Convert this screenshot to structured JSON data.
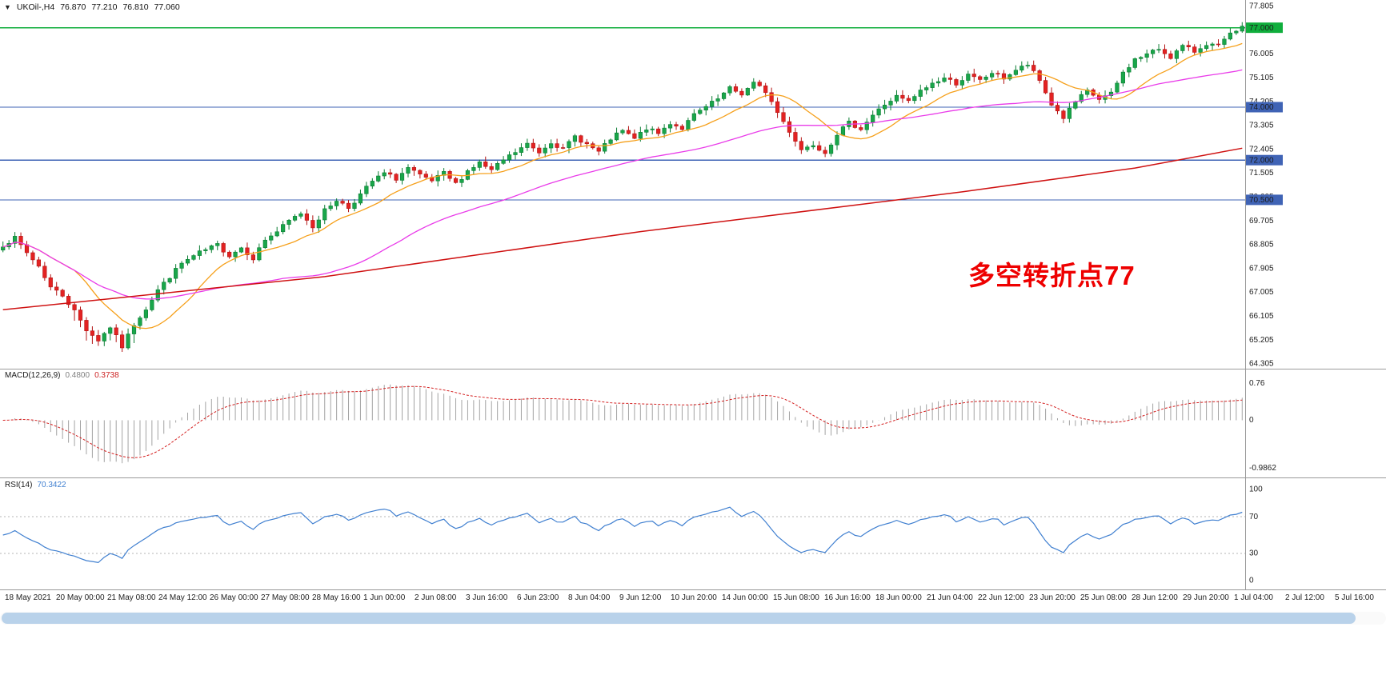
{
  "symbol_bar": {
    "dropdown_glyph": "▼",
    "symbol_period": "UKOil-,H4",
    "open": "76.870",
    "high": "77.210",
    "low": "76.810",
    "close": "77.060"
  },
  "annotation": {
    "text": "多空转折点77",
    "color": "#ee0000"
  },
  "macd_header": {
    "name_label": "MACD(12,26,9)",
    "macd_value": "0.4800",
    "signal_value": "0.3738"
  },
  "rsi_header": {
    "name_label": "RSI(14)",
    "value": "70.3422"
  },
  "x_axis": {
    "labels": [
      "18 May 2021",
      "20 May 00:00",
      "21 May 08:00",
      "24 May 12:00",
      "26 May 00:00",
      "27 May 08:00",
      "28 May 16:00",
      "1 Jun 00:00",
      "2 Jun 08:00",
      "3 Jun 16:00",
      "6 Jun 23:00",
      "8 Jun 04:00",
      "9 Jun 12:00",
      "10 Jun 20:00",
      "14 Jun 00:00",
      "15 Jun 08:00",
      "16 Jun 16:00",
      "18 Jun 00:00",
      "21 Jun 04:00",
      "22 Jun 12:00",
      "23 Jun 20:00",
      "25 Jun 08:00",
      "28 Jun 12:00",
      "29 Jun 20:00",
      "1 Jul 04:00",
      "2 Jul 12:00",
      "5 Jul 16:00"
    ]
  },
  "chart_data": {
    "type": "candlestick",
    "symbol": "UKOil-",
    "timeframe": "H4",
    "main": {
      "bars_total": 209,
      "y_axis": {
        "max": 77.805,
        "min": 64.305,
        "tick_step": 0.9,
        "tick_labels": [
          "77.805",
          "76.905",
          "76.005",
          "75.105",
          "74.205",
          "73.305",
          "72.405",
          "71.505",
          "70.605",
          "69.705",
          "68.805",
          "67.905",
          "67.005",
          "66.105",
          "65.205",
          "64.305"
        ]
      },
      "price_path_anchors": [
        [
          0,
          68.8
        ],
        [
          2,
          69.05
        ],
        [
          4,
          68.5
        ],
        [
          6,
          68.0
        ],
        [
          8,
          67.2
        ],
        [
          10,
          66.9
        ],
        [
          12,
          66.3
        ],
        [
          14,
          65.6
        ],
        [
          16,
          65.2
        ],
        [
          18,
          65.7
        ],
        [
          20,
          64.95
        ],
        [
          22,
          65.8
        ],
        [
          24,
          66.4
        ],
        [
          26,
          67.1
        ],
        [
          28,
          67.6
        ],
        [
          30,
          68.1
        ],
        [
          33,
          68.5
        ],
        [
          36,
          68.8
        ],
        [
          38,
          68.4
        ],
        [
          40,
          68.7
        ],
        [
          42,
          68.3
        ],
        [
          44,
          69.0
        ],
        [
          46,
          69.3
        ],
        [
          48,
          69.7
        ],
        [
          50,
          70.0
        ],
        [
          52,
          69.5
        ],
        [
          54,
          70.1
        ],
        [
          56,
          70.5
        ],
        [
          58,
          70.2
        ],
        [
          60,
          70.7
        ],
        [
          62,
          71.2
        ],
        [
          64,
          71.5
        ],
        [
          66,
          71.3
        ],
        [
          68,
          71.7
        ],
        [
          70,
          71.4
        ],
        [
          72,
          71.2
        ],
        [
          74,
          71.5
        ],
        [
          76,
          71.1
        ],
        [
          78,
          71.6
        ],
        [
          80,
          71.9
        ],
        [
          82,
          71.6
        ],
        [
          84,
          72.0
        ],
        [
          86,
          72.3
        ],
        [
          88,
          72.6
        ],
        [
          90,
          72.3
        ],
        [
          92,
          72.7
        ],
        [
          94,
          72.4
        ],
        [
          96,
          72.9
        ],
        [
          98,
          72.6
        ],
        [
          100,
          72.3
        ],
        [
          102,
          72.8
        ],
        [
          104,
          73.1
        ],
        [
          106,
          72.8
        ],
        [
          108,
          73.2
        ],
        [
          110,
          73.0
        ],
        [
          112,
          73.4
        ],
        [
          114,
          73.2
        ],
        [
          116,
          73.7
        ],
        [
          118,
          74.0
        ],
        [
          120,
          74.3
        ],
        [
          122,
          74.7
        ],
        [
          124,
          74.5
        ],
        [
          126,
          74.9
        ],
        [
          128,
          74.6
        ],
        [
          130,
          73.8
        ],
        [
          132,
          73.1
        ],
        [
          134,
          72.4
        ],
        [
          136,
          72.6
        ],
        [
          138,
          72.3
        ],
        [
          140,
          73.0
        ],
        [
          142,
          73.4
        ],
        [
          144,
          73.2
        ],
        [
          146,
          73.7
        ],
        [
          148,
          74.1
        ],
        [
          150,
          74.4
        ],
        [
          152,
          74.2
        ],
        [
          154,
          74.6
        ],
        [
          156,
          74.9
        ],
        [
          158,
          75.1
        ],
        [
          160,
          74.9
        ],
        [
          162,
          75.2
        ],
        [
          164,
          75.0
        ],
        [
          166,
          75.3
        ],
        [
          168,
          75.1
        ],
        [
          170,
          75.4
        ],
        [
          172,
          75.6
        ],
        [
          174,
          75.0
        ],
        [
          176,
          74.1
        ],
        [
          178,
          73.6
        ],
        [
          180,
          74.2
        ],
        [
          182,
          74.6
        ],
        [
          184,
          74.3
        ],
        [
          186,
          74.5
        ],
        [
          188,
          75.3
        ],
        [
          190,
          75.8
        ],
        [
          192,
          76.0
        ],
        [
          194,
          76.2
        ],
        [
          196,
          75.9
        ],
        [
          198,
          76.3
        ],
        [
          200,
          76.1
        ],
        [
          202,
          76.4
        ],
        [
          204,
          76.3
        ],
        [
          206,
          76.75
        ],
        [
          207,
          76.87
        ],
        [
          208,
          77.06
        ]
      ],
      "last_ohlc": {
        "open": 76.87,
        "high": 77.21,
        "low": 76.81,
        "close": 77.06
      },
      "bar_colors": {
        "up": "#19a64a",
        "up_stroke": "#0b7d33",
        "down": "#e32222",
        "down_stroke": "#b31414"
      },
      "hlines": [
        {
          "price": 77.0,
          "label": "77.000",
          "color": "#0fae3c",
          "width": 1.6
        },
        {
          "price": 74.0,
          "label": "74.000",
          "color": "#3f63b5",
          "width": 1.2
        },
        {
          "price": 72.0,
          "label": "72.000",
          "color": "#3f63b5",
          "width": 1.2
        },
        {
          "price": 70.5,
          "label": "70.500",
          "color": "#3f63b5",
          "width": 1.2
        }
      ],
      "moving_averages": [
        {
          "name": "ma-fast",
          "type": "sma",
          "period": 13,
          "color": "#f6a01b"
        },
        {
          "name": "ma-mid",
          "type": "sma",
          "period": 48,
          "color": "#e93ce9"
        },
        {
          "name": "ma-slow",
          "type": "anchors",
          "color": "#cf1212",
          "points": [
            [
              0,
              66.35
            ],
            [
              54,
              67.6
            ],
            [
              107,
              69.3
            ],
            [
              161,
              70.8
            ],
            [
              190,
              71.7
            ],
            [
              208,
              72.45
            ]
          ]
        }
      ]
    },
    "macd": {
      "type": "histogram+line",
      "params": [
        12,
        26,
        9
      ],
      "tick_labels": [
        "0.76",
        "0",
        "-0.9862"
      ],
      "tick_values": [
        0.76,
        0,
        -0.9862
      ],
      "hist_color": "#a3a3a3",
      "signal_color": "#d42020",
      "last_values": [
        0.48,
        0.3738
      ]
    },
    "rsi": {
      "type": "line",
      "period": 14,
      "tick_labels": [
        "100",
        "70",
        "30",
        "0"
      ],
      "tick_values": [
        100,
        70,
        30,
        0
      ],
      "levels": [
        70,
        30
      ],
      "color": "#3f7fd0",
      "levels_color": "#b4b4b4",
      "last_value": 70.3422
    }
  }
}
